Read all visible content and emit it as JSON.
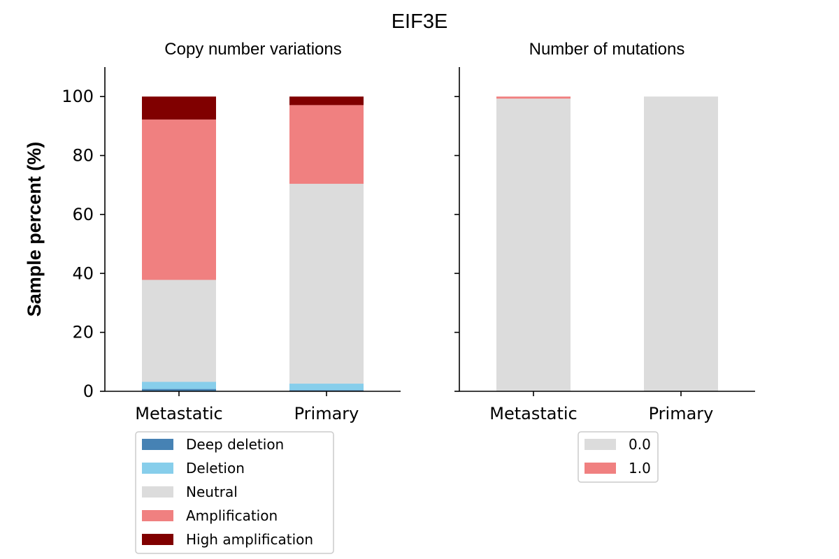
{
  "figure": {
    "title": "EIF3E",
    "ylabel": "Sample percent (%)"
  },
  "colors": {
    "deep_deletion": "#4682b4",
    "deletion": "#87ceeb",
    "neutral": "#dcdcdc",
    "amplification": "#f08080",
    "high_amplification": "#800000",
    "mut_0": "#dcdcdc",
    "mut_1": "#f08080"
  },
  "chart_data": [
    {
      "type": "bar",
      "stacked": true,
      "title": "Copy number variations",
      "xlabel": "",
      "ylabel": "Sample percent (%)",
      "categories": [
        "Metastatic",
        "Primary"
      ],
      "ylim": [
        0,
        110
      ],
      "yticks": [
        0,
        20,
        40,
        60,
        80,
        100
      ],
      "grid": false,
      "legend": "below",
      "series": [
        {
          "name": "Deep deletion",
          "color": "#4682b4",
          "values": [
            0.8,
            0.4
          ]
        },
        {
          "name": "Deletion",
          "color": "#87ceeb",
          "values": [
            2.4,
            2.2
          ]
        },
        {
          "name": "Neutral",
          "color": "#dcdcdc",
          "values": [
            34.6,
            67.8
          ]
        },
        {
          "name": "Amplification",
          "color": "#f08080",
          "values": [
            54.4,
            26.7
          ]
        },
        {
          "name": "High amplification",
          "color": "#800000",
          "values": [
            7.8,
            2.9
          ]
        }
      ]
    },
    {
      "type": "bar",
      "stacked": true,
      "title": "Number of mutations",
      "xlabel": "",
      "ylabel": "",
      "categories": [
        "Metastatic",
        "Primary"
      ],
      "ylim": [
        0,
        110
      ],
      "yticks": [
        0,
        20,
        40,
        60,
        80,
        100
      ],
      "grid": false,
      "legend": "below",
      "series": [
        {
          "name": "0.0",
          "color": "#dcdcdc",
          "values": [
            99.3,
            100
          ]
        },
        {
          "name": "1.0",
          "color": "#f08080",
          "values": [
            0.7,
            0
          ]
        }
      ]
    }
  ]
}
